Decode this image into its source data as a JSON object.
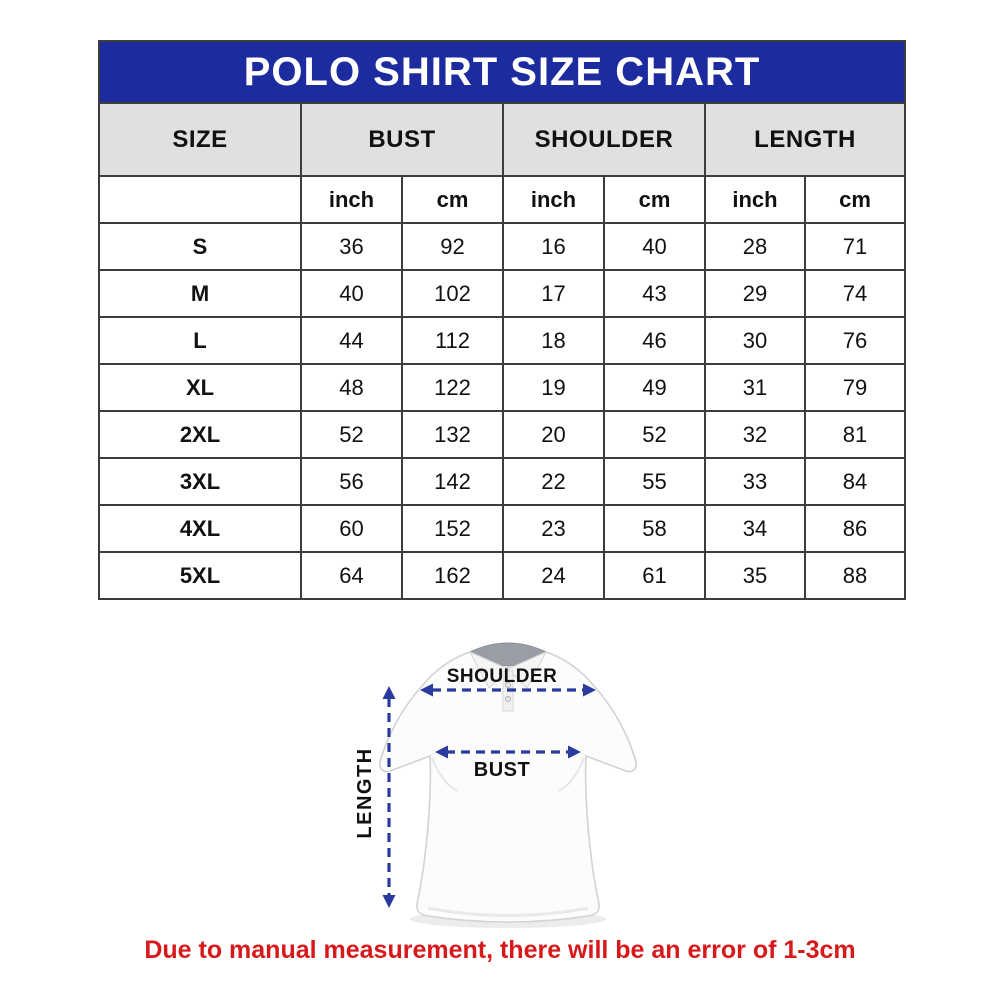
{
  "header": {
    "title": "POLO SHIRT SIZE CHART",
    "bg_color": "#1c2b9e",
    "text_color": "#ffffff"
  },
  "table": {
    "columns": [
      "SIZE",
      "BUST",
      "SHOULDER",
      "LENGTH"
    ],
    "units": [
      "inch",
      "cm",
      "inch",
      "cm",
      "inch",
      "cm"
    ],
    "rows": [
      {
        "size": "S",
        "values": [
          "36",
          "92",
          "16",
          "40",
          "28",
          "71"
        ]
      },
      {
        "size": "M",
        "values": [
          "40",
          "102",
          "17",
          "43",
          "29",
          "74"
        ]
      },
      {
        "size": "L",
        "values": [
          "44",
          "112",
          "18",
          "46",
          "30",
          "76"
        ]
      },
      {
        "size": "XL",
        "values": [
          "48",
          "122",
          "19",
          "49",
          "31",
          "79"
        ]
      },
      {
        "size": "2XL",
        "values": [
          "52",
          "132",
          "20",
          "52",
          "32",
          "81"
        ]
      },
      {
        "size": "3XL",
        "values": [
          "56",
          "142",
          "22",
          "55",
          "33",
          "84"
        ]
      },
      {
        "size": "4XL",
        "values": [
          "60",
          "152",
          "23",
          "58",
          "34",
          "86"
        ]
      },
      {
        "size": "5XL",
        "values": [
          "64",
          "162",
          "24",
          "61",
          "35",
          "88"
        ]
      }
    ]
  },
  "diagram": {
    "shoulder_label": "SHOULDER",
    "bust_label": "BUST",
    "length_label": "LENGTH",
    "arrow_color": "#2b3a9e"
  },
  "footnote": {
    "text": "Due to manual measurement, there will be an error of 1-3cm",
    "color": "#d8191c"
  },
  "chart_data": {
    "type": "table",
    "title": "POLO SHIRT SIZE CHART",
    "columns": [
      "SIZE",
      "BUST inch",
      "BUST cm",
      "SHOULDER inch",
      "SHOULDER cm",
      "LENGTH inch",
      "LENGTH cm"
    ],
    "rows": [
      [
        "S",
        36,
        92,
        16,
        40,
        28,
        71
      ],
      [
        "M",
        40,
        102,
        17,
        43,
        29,
        74
      ],
      [
        "L",
        44,
        112,
        18,
        46,
        30,
        76
      ],
      [
        "XL",
        48,
        122,
        19,
        49,
        31,
        79
      ],
      [
        "2XL",
        52,
        132,
        20,
        52,
        32,
        81
      ],
      [
        "3XL",
        56,
        142,
        22,
        55,
        33,
        84
      ],
      [
        "4XL",
        60,
        152,
        23,
        58,
        34,
        86
      ],
      [
        "5XL",
        64,
        162,
        24,
        61,
        35,
        88
      ]
    ],
    "footnote": "Due to manual measurement, there will be an error of 1-3cm"
  }
}
